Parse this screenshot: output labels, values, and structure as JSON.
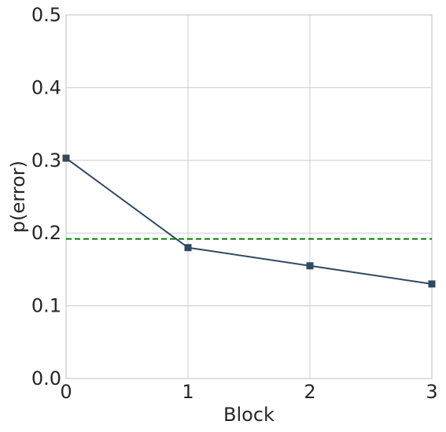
{
  "chart_data": {
    "type": "line",
    "title": "",
    "xlabel": "Block",
    "ylabel": "p(error)",
    "xlim": [
      0,
      3
    ],
    "ylim": [
      0.0,
      0.5
    ],
    "x_ticks": [
      "0",
      "1",
      "2",
      "3"
    ],
    "y_ticks": [
      "0.0",
      "0.1",
      "0.2",
      "0.3",
      "0.4",
      "0.5"
    ],
    "grid": true,
    "series": [
      {
        "x": [
          0,
          1,
          2,
          3
        ],
        "values": [
          0.303,
          0.18,
          0.155,
          0.13
        ],
        "color": "#2e4a62",
        "marker": "square"
      }
    ],
    "reference_line": {
      "y": 0.192,
      "color": "#008000",
      "style": "dashed"
    }
  }
}
